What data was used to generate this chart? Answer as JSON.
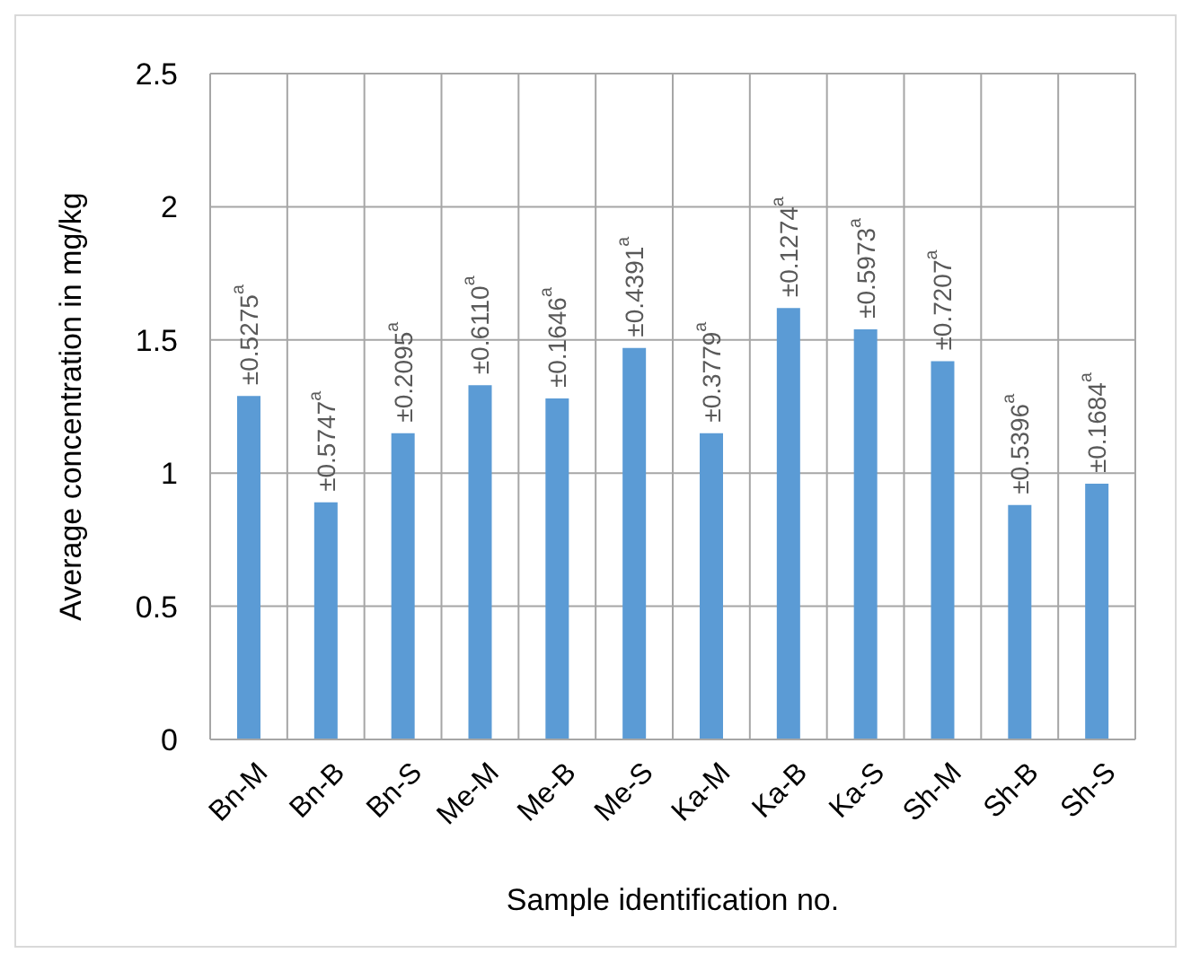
{
  "chart_data": {
    "type": "bar",
    "xlabel": "Sample identification no.",
    "ylabel": "Average concentration in mg/kg",
    "categories": [
      "Bn-M",
      "Bn-B",
      "Bn-S",
      "Me-M",
      "Me-B",
      "Me-S",
      "Ka-M",
      "Ka-B",
      "Ka-S",
      "Sh-M",
      "Sh-B",
      "Sh-S"
    ],
    "values": [
      1.29,
      0.89,
      1.15,
      1.33,
      1.28,
      1.47,
      1.15,
      1.62,
      1.54,
      1.42,
      0.88,
      0.96
    ],
    "annotations": [
      {
        "text": "±0.5275$^{a}$",
        "x": "Bn-M",
        "y": 1.29
      },
      {
        "text": "±0.5747$^{a}$",
        "x": "Bn-B",
        "y": 0.89
      },
      {
        "text": "±0.2095$^{a}$",
        "x": "Bn-S",
        "y": 1.15
      },
      {
        "text": "±0.6110$^{a}$",
        "x": "Me-M",
        "y": 1.33
      },
      {
        "text": "±0.1646$^{a}$",
        "x": "Me-B",
        "y": 1.28
      },
      {
        "text": "±0.4391$^{a}$",
        "x": "Me-S",
        "y": 1.47
      },
      {
        "text": "±0.3779$^{a}$",
        "x": "Ka-M",
        "y": 1.15
      },
      {
        "text": "±0.1274$^{a}$",
        "x": "Ka-B",
        "y": 1.62
      },
      {
        "text": "±0.5973$^{a}$",
        "x": "Ka-S",
        "y": 1.54
      },
      {
        "text": "±0.7207$^{a}$",
        "x": "Sh-M",
        "y": 1.42
      },
      {
        "text": "±0.5396$^{a}$",
        "x": "Sh-B",
        "y": 0.88
      },
      {
        "text": "±0.1684$^{a}$",
        "x": "Sh-S",
        "y": 0.96
      }
    ],
    "color": "#5b9bd5",
    "ylim": [
      0,
      2.5
    ],
    "yticks": [
      0,
      0.5,
      1,
      1.5,
      2,
      2.5
    ],
    "grid": true,
    "legend": false
  }
}
